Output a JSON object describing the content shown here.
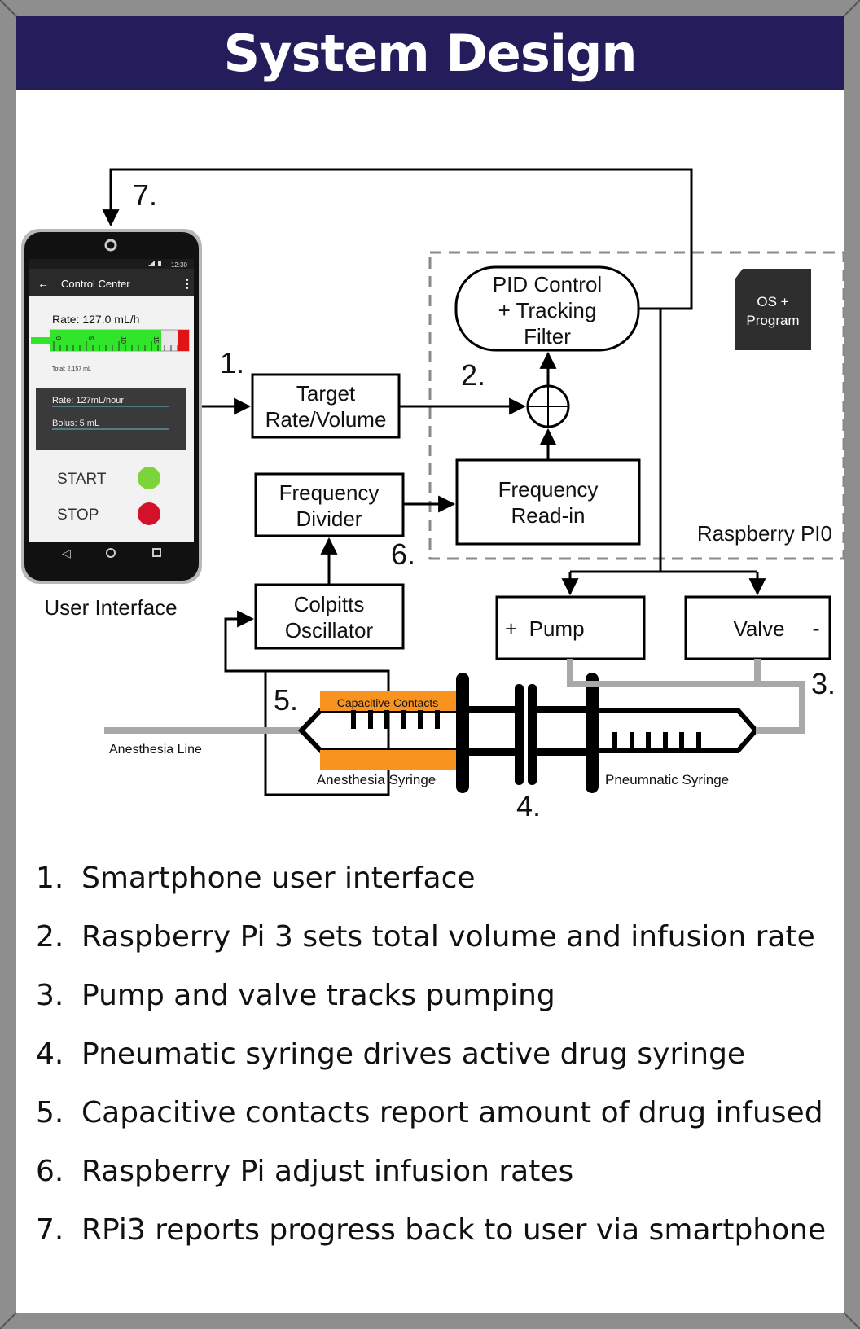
{
  "title": "System Design",
  "phone": {
    "app_title": "Control Center",
    "clock": "12:30",
    "rate_display": "Rate: 127.0 mL/h",
    "gauge_ticks": [
      "0",
      "5",
      "10",
      "15"
    ],
    "gauge_level": 0.8,
    "total": "Total: 2.157 mL",
    "rate_field": "Rate:  127mL/hour",
    "bolus_field": "Bolus:  5 mL",
    "start_label": "START",
    "stop_label": "STOP",
    "start_color": "#7cd33a",
    "stop_color": "#d4112a"
  },
  "diagram": {
    "user_interface": "User Interface",
    "target_line1": "Target",
    "target_line2": "Rate/Volume",
    "pid_line1": "PID Control",
    "pid_line2": "+ Tracking",
    "pid_line3": "Filter",
    "os_line1": "OS +",
    "os_line2": "Program",
    "freq_read_line1": "Frequency",
    "freq_read_line2": "Read-in",
    "freq_div_line1": "Frequency",
    "freq_div_line2": "Divider",
    "colpitts_line1": "Colpitts",
    "colpitts_line2": "Oscillator",
    "raspberry": "Raspberry PI0",
    "pump": "+  Pump",
    "valve": "Valve",
    "valve_sign": "-",
    "capacitive": "Capacitive Contacts",
    "anesthesia_line": "Anesthesia Line",
    "anesthesia_syringe": "Anesthesia Syringe",
    "pneumatic_syringe": "Pneumnatic Syringe",
    "step_labels": [
      "1.",
      "2.",
      "3.",
      "4.",
      "5.",
      "6.",
      "7."
    ]
  },
  "legend": [
    {
      "num": "1.",
      "text": "Smartphone user interface"
    },
    {
      "num": "2.",
      "text": "Raspberry Pi 3 sets total volume and infusion rate"
    },
    {
      "num": "3.",
      "text": "Pump and valve tracks pumping"
    },
    {
      "num": "4.",
      "text": "Pneumatic syringe drives active drug syringe"
    },
    {
      "num": "5.",
      "text": "Capacitive contacts report amount of drug infused"
    },
    {
      "num": "6.",
      "text": "Raspberry Pi adjust infusion rates"
    },
    {
      "num": "7.",
      "text": "RPi3 reports progress back to user via smartphone"
    }
  ]
}
